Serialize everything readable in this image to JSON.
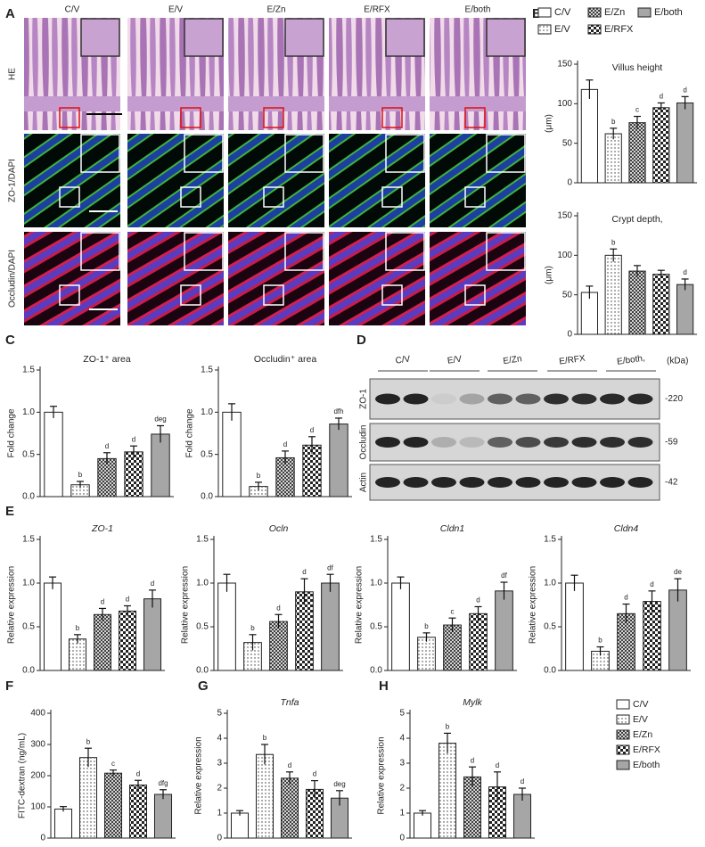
{
  "figure": {
    "letters": [
      "A",
      "B",
      "C",
      "D",
      "E",
      "F",
      "G",
      "H"
    ],
    "histology": {
      "columns": [
        "C/V",
        "E/V",
        "E/Zn",
        "E/RFX",
        "E/both"
      ],
      "rows": [
        "HE",
        "ZO-1/DAPI",
        "Occludin/DAPI"
      ]
    },
    "blot": {
      "lanes": [
        "C/V",
        "E/V",
        "E/Zn",
        "E/RFX",
        "E/both,"
      ],
      "proteins": [
        "ZO-1",
        "Occludin",
        "Actin"
      ],
      "unit": "(kDa)",
      "sizes": [
        "-220",
        "-59",
        "-42"
      ]
    }
  },
  "legends": [
    {
      "names": [
        "C/V",
        "E/V",
        "E/Zn",
        "E/RFX",
        "E/both"
      ],
      "fills": [
        "white",
        "dots",
        "cross",
        "checker",
        "#a6a6a6"
      ]
    },
    {
      "names": [
        "C/V",
        "E/V",
        "E/Zn",
        "E/RFX",
        "E/both"
      ],
      "fills": [
        "white",
        "dots",
        "cross",
        "checker",
        "#a6a6a6"
      ]
    }
  ],
  "chart_data": [
    {
      "type": "bar",
      "title": "Villus height",
      "ylabel": "(μm)",
      "ylim": [
        0,
        150
      ],
      "yticks": [
        0,
        50,
        100,
        150
      ],
      "values": [
        118,
        62,
        76,
        95,
        101
      ],
      "errors": [
        12,
        7,
        8,
        6,
        8
      ],
      "annotations": [
        null,
        "b",
        "c",
        "d",
        "d"
      ]
    },
    {
      "type": "bar",
      "title": "Crypt depth,",
      "ylabel": "(μm)",
      "ylim": [
        0,
        150
      ],
      "yticks": [
        0,
        50,
        100,
        150
      ],
      "values": [
        53,
        100,
        80,
        76,
        63
      ],
      "errors": [
        8,
        8,
        7,
        5,
        7
      ],
      "annotations": [
        null,
        "b",
        null,
        null,
        "d"
      ]
    },
    {
      "type": "bar",
      "title": "ZO-1⁺ area",
      "ylabel": "Fold change",
      "ylim": [
        0,
        1.5
      ],
      "yticks": [
        {
          "value": 0,
          "label": "0.0"
        },
        {
          "value": 0.5,
          "label": "0.5"
        },
        {
          "value": 1,
          "label": "1.0"
        },
        {
          "value": 1.5,
          "label": "1.5"
        }
      ],
      "values": [
        1.0,
        0.14,
        0.45,
        0.53,
        0.74
      ],
      "errors": [
        0.07,
        0.04,
        0.07,
        0.07,
        0.1
      ],
      "annotations": [
        null,
        "b",
        "d",
        "d",
        "deg"
      ]
    },
    {
      "type": "bar",
      "title": "Occludin⁺ area",
      "ylabel": "Fold change",
      "ylim": [
        0,
        1.5
      ],
      "yticks": [
        {
          "value": 0,
          "label": "0.0"
        },
        {
          "value": 0.5,
          "label": "0.5"
        },
        {
          "value": 1,
          "label": "1.0"
        },
        {
          "value": 1.5,
          "label": "1.5"
        }
      ],
      "values": [
        1.0,
        0.12,
        0.46,
        0.61,
        0.86
      ],
      "errors": [
        0.1,
        0.05,
        0.08,
        0.1,
        0.07
      ],
      "annotations": [
        null,
        "b",
        "d",
        "d",
        "dfh"
      ]
    },
    {
      "type": "bar",
      "title": "ZO-1",
      "italic_title": true,
      "ylabel": "Relative expression",
      "ylim": [
        0,
        1.5
      ],
      "yticks": [
        {
          "value": 0,
          "label": "0.0"
        },
        {
          "value": 0.5,
          "label": "0.5"
        },
        {
          "value": 1,
          "label": "1.0"
        },
        {
          "value": 1.5,
          "label": "1.5"
        }
      ],
      "values": [
        1.0,
        0.36,
        0.64,
        0.68,
        0.82
      ],
      "errors": [
        0.07,
        0.05,
        0.07,
        0.06,
        0.1
      ],
      "annotations": [
        null,
        "b",
        "d",
        "d",
        "d"
      ]
    },
    {
      "type": "bar",
      "title": "Ocln",
      "italic_title": true,
      "ylabel": "Relative expression",
      "ylim": [
        0,
        1.5
      ],
      "yticks": [
        {
          "value": 0,
          "label": "0.0"
        },
        {
          "value": 0.5,
          "label": "0.5"
        },
        {
          "value": 1,
          "label": "1.0"
        },
        {
          "value": 1.5,
          "label": "1.5"
        }
      ],
      "values": [
        1.0,
        0.32,
        0.56,
        0.9,
        1.0
      ],
      "errors": [
        0.1,
        0.09,
        0.08,
        0.15,
        0.1
      ],
      "annotations": [
        null,
        "b",
        "d",
        "d",
        "df"
      ]
    },
    {
      "type": "bar",
      "title": "Cldn1",
      "italic_title": true,
      "ylabel": "Relative expression",
      "ylim": [
        0,
        1.5
      ],
      "yticks": [
        {
          "value": 0,
          "label": "0.0"
        },
        {
          "value": 0.5,
          "label": "0.5"
        },
        {
          "value": 1,
          "label": "1.0"
        },
        {
          "value": 1.5,
          "label": "1.5"
        }
      ],
      "values": [
        1.0,
        0.38,
        0.52,
        0.65,
        0.91
      ],
      "errors": [
        0.07,
        0.05,
        0.08,
        0.08,
        0.1
      ],
      "annotations": [
        null,
        "b",
        "c",
        "d",
        "df"
      ]
    },
    {
      "type": "bar",
      "title": "Cldn4",
      "italic_title": true,
      "ylabel": "Relative expression",
      "ylim": [
        0,
        1.5
      ],
      "yticks": [
        {
          "value": 0,
          "label": "0.0"
        },
        {
          "value": 0.5,
          "label": "0.5"
        },
        {
          "value": 1,
          "label": "1.0"
        },
        {
          "value": 1.5,
          "label": "1.5"
        }
      ],
      "values": [
        1.0,
        0.22,
        0.65,
        0.79,
        0.92
      ],
      "errors": [
        0.09,
        0.05,
        0.11,
        0.12,
        0.13
      ],
      "annotations": [
        null,
        "b",
        "d",
        "d",
        "de"
      ]
    },
    {
      "type": "bar",
      "ylabel": "FITC-dextran (ng/mL)",
      "ylim": [
        0,
        400
      ],
      "yticks": [
        0,
        100,
        200,
        300,
        400
      ],
      "values": [
        93,
        258,
        208,
        170,
        140
      ],
      "errors": [
        8,
        30,
        10,
        15,
        15
      ],
      "annotations": [
        null,
        "b",
        "c",
        "d",
        "dfg"
      ]
    },
    {
      "type": "bar",
      "title": "Tnfa",
      "italic_title": true,
      "ylabel": "Relative expression",
      "ylim": [
        0,
        5
      ],
      "yticks": [
        0,
        1,
        2,
        3,
        4,
        5
      ],
      "values": [
        1.0,
        3.35,
        2.4,
        1.95,
        1.6
      ],
      "errors": [
        0.1,
        0.4,
        0.25,
        0.35,
        0.3
      ],
      "annotations": [
        null,
        "b",
        "d",
        "d",
        "deg"
      ]
    },
    {
      "type": "bar",
      "title": "Mylk",
      "italic_title": true,
      "ylabel": "Relative expression",
      "ylim": [
        0,
        5
      ],
      "yticks": [
        0,
        1,
        2,
        3,
        4,
        5
      ],
      "values": [
        1.0,
        3.8,
        2.45,
        2.05,
        1.75
      ],
      "errors": [
        0.1,
        0.4,
        0.4,
        0.6,
        0.25
      ],
      "annotations": [
        null,
        "b",
        "d",
        "d",
        "d"
      ]
    }
  ]
}
